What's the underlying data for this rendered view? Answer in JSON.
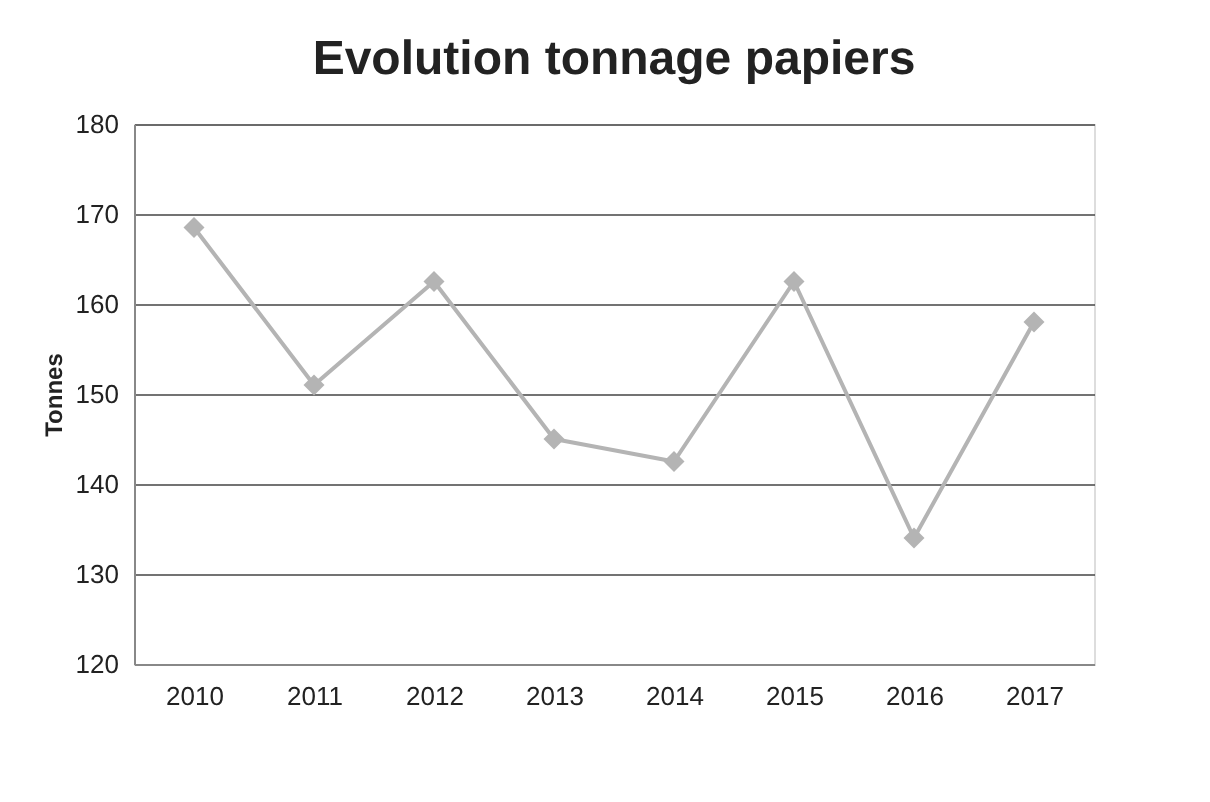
{
  "chart_data": {
    "type": "line",
    "title": "Evolution tonnage papiers",
    "ylabel": "Tonnes",
    "categories": [
      "2010",
      "2011",
      "2012",
      "2013",
      "2014",
      "2015",
      "2016",
      "2017"
    ],
    "series": [
      {
        "color": "#b4b4b4",
        "values": [
          168.5,
          151,
          162.5,
          145,
          142.5,
          162.5,
          134,
          158
        ]
      }
    ],
    "ylim": [
      120,
      180
    ],
    "yticks": [
      120,
      130,
      140,
      150,
      160,
      170,
      180
    ],
    "grid": "y",
    "legend": false,
    "marker": "diamond",
    "line_style": "solid"
  }
}
